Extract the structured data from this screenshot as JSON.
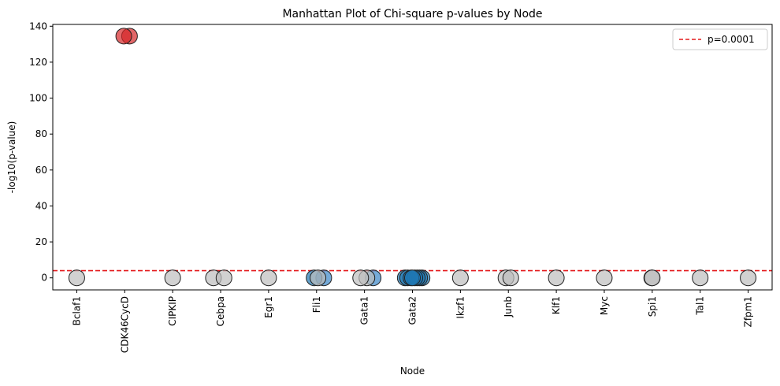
{
  "chart_data": {
    "type": "scatter",
    "title": "Manhattan Plot of Chi-square p-values by Node",
    "xlabel": "Node",
    "ylabel": "-log10(p-value)",
    "categories": [
      "Bclaf1",
      "CDK46CycD",
      "CIPKIP",
      "Cebpa",
      "Egr1",
      "Fli1",
      "Gata1",
      "Gata2",
      "Ikzf1",
      "Junb",
      "Klf1",
      "Myc",
      "Spi1",
      "Tal1",
      "Zfpm1"
    ],
    "ylim": [
      -6.7,
      141
    ],
    "yticks": [
      0,
      20,
      40,
      60,
      80,
      100,
      120,
      140
    ],
    "threshold": {
      "label": "p=0.0001",
      "value": 4,
      "color": "#e41a1c"
    },
    "legend_position": "top-right",
    "grid": false,
    "colors": {
      "significant": "#d62728",
      "nonsignificant": "#bdbdbd",
      "gata2_family": "#1f77b4",
      "gata2_light": "#3a86c8",
      "threshold": "#e41a1c"
    },
    "points": [
      {
        "node": "Bclaf1",
        "offset": 0.0,
        "y": 0,
        "color": "#bdbdbd"
      },
      {
        "node": "CDK46CycD",
        "offset": 0.1,
        "y": 134.5,
        "color": "#d62728"
      },
      {
        "node": "CDK46CycD",
        "offset": -0.02,
        "y": 134.5,
        "color": "#d62728"
      },
      {
        "node": "CIPKIP",
        "offset": 0.0,
        "y": 0,
        "color": "#bdbdbd"
      },
      {
        "node": "Cebpa",
        "offset": -0.15,
        "y": 0,
        "color": "#bdbdbd"
      },
      {
        "node": "Cebpa",
        "offset": 0.07,
        "y": 0,
        "color": "#bdbdbd"
      },
      {
        "node": "Egr1",
        "offset": 0.0,
        "y": 0,
        "color": "#bdbdbd"
      },
      {
        "node": "Fli1",
        "offset": 0.15,
        "y": 0,
        "color": "#3a86c8"
      },
      {
        "node": "Fli1",
        "offset": -0.05,
        "y": 0,
        "color": "#1f77b4"
      },
      {
        "node": "Fli1",
        "offset": 0.03,
        "y": 0,
        "color": "#bdbdbd"
      },
      {
        "node": "Gata1",
        "offset": 0.18,
        "y": 0,
        "color": "#3a86c8"
      },
      {
        "node": "Gata1",
        "offset": 0.05,
        "y": 0,
        "color": "#bdbdbd"
      },
      {
        "node": "Gata1",
        "offset": -0.08,
        "y": 0,
        "color": "#bdbdbd"
      },
      {
        "node": "Gata2",
        "offset": -0.15,
        "y": 0,
        "color": "#1f77b4"
      },
      {
        "node": "Gata2",
        "offset": -0.1,
        "y": 0,
        "color": "#1f77b4"
      },
      {
        "node": "Gata2",
        "offset": 0.2,
        "y": 0,
        "color": "#1f77b4"
      },
      {
        "node": "Gata2",
        "offset": 0.15,
        "y": 0,
        "color": "#1f77b4"
      },
      {
        "node": "Gata2",
        "offset": 0.1,
        "y": 0,
        "color": "#1f77b4"
      },
      {
        "node": "Gata2",
        "offset": 0.05,
        "y": 0,
        "color": "#1f77b4"
      },
      {
        "node": "Gata2",
        "offset": -0.03,
        "y": 0,
        "color": "#1f77b4"
      },
      {
        "node": "Gata2",
        "offset": 0.0,
        "y": 0,
        "color": "#1f77b4"
      },
      {
        "node": "Ikzf1",
        "offset": 0.0,
        "y": 0,
        "color": "#bdbdbd"
      },
      {
        "node": "Junb",
        "offset": -0.05,
        "y": 0,
        "color": "#bdbdbd"
      },
      {
        "node": "Junb",
        "offset": 0.05,
        "y": 0,
        "color": "#bdbdbd"
      },
      {
        "node": "Klf1",
        "offset": 0.0,
        "y": 0,
        "color": "#bdbdbd"
      },
      {
        "node": "Myc",
        "offset": 0.0,
        "y": 0,
        "color": "#bdbdbd"
      },
      {
        "node": "Spi1",
        "offset": -0.01,
        "y": 0,
        "color": "#bdbdbd"
      },
      {
        "node": "Spi1",
        "offset": 0.0,
        "y": 0,
        "color": "#bdbdbd"
      },
      {
        "node": "Tal1",
        "offset": 0.0,
        "y": 0,
        "color": "#bdbdbd"
      },
      {
        "node": "Zfpm1",
        "offset": 0.0,
        "y": 0,
        "color": "#bdbdbd"
      }
    ]
  }
}
